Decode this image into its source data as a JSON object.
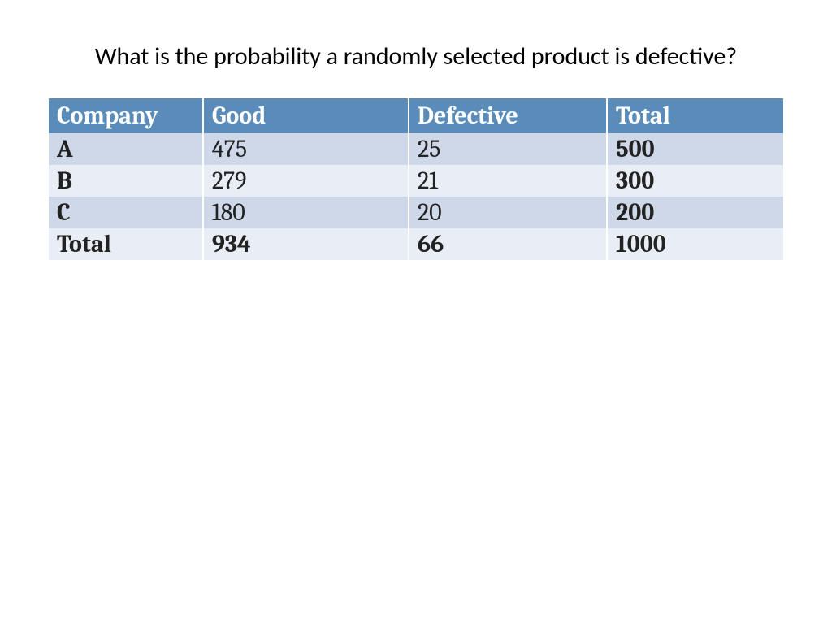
{
  "title": "What is the probability a randomly selected product is defective?",
  "table": {
    "header_bg": "#5b8cb9",
    "header_fg": "#ffffff",
    "row_band1_bg": "#cfd8e8",
    "row_band2_bg": "#e9edf5",
    "cell_fg": "#222222",
    "header_fontsize": 30,
    "cell_fontsize": 30,
    "columns": [
      "Company",
      "Good",
      "Defective",
      "Total"
    ],
    "rows": [
      {
        "label": "A",
        "good": "475",
        "defective": "25",
        "total": "500",
        "bold_total": true
      },
      {
        "label": "B",
        "good": "279",
        "defective": "21",
        "total": "300",
        "bold_total": true
      },
      {
        "label": "C",
        "good": "180",
        "defective": "20",
        "total": "200",
        "bold_total": true
      },
      {
        "label": "Total",
        "good": "934",
        "defective": "66",
        "total": "1000",
        "bold_total": true,
        "bold_row": true
      }
    ]
  }
}
